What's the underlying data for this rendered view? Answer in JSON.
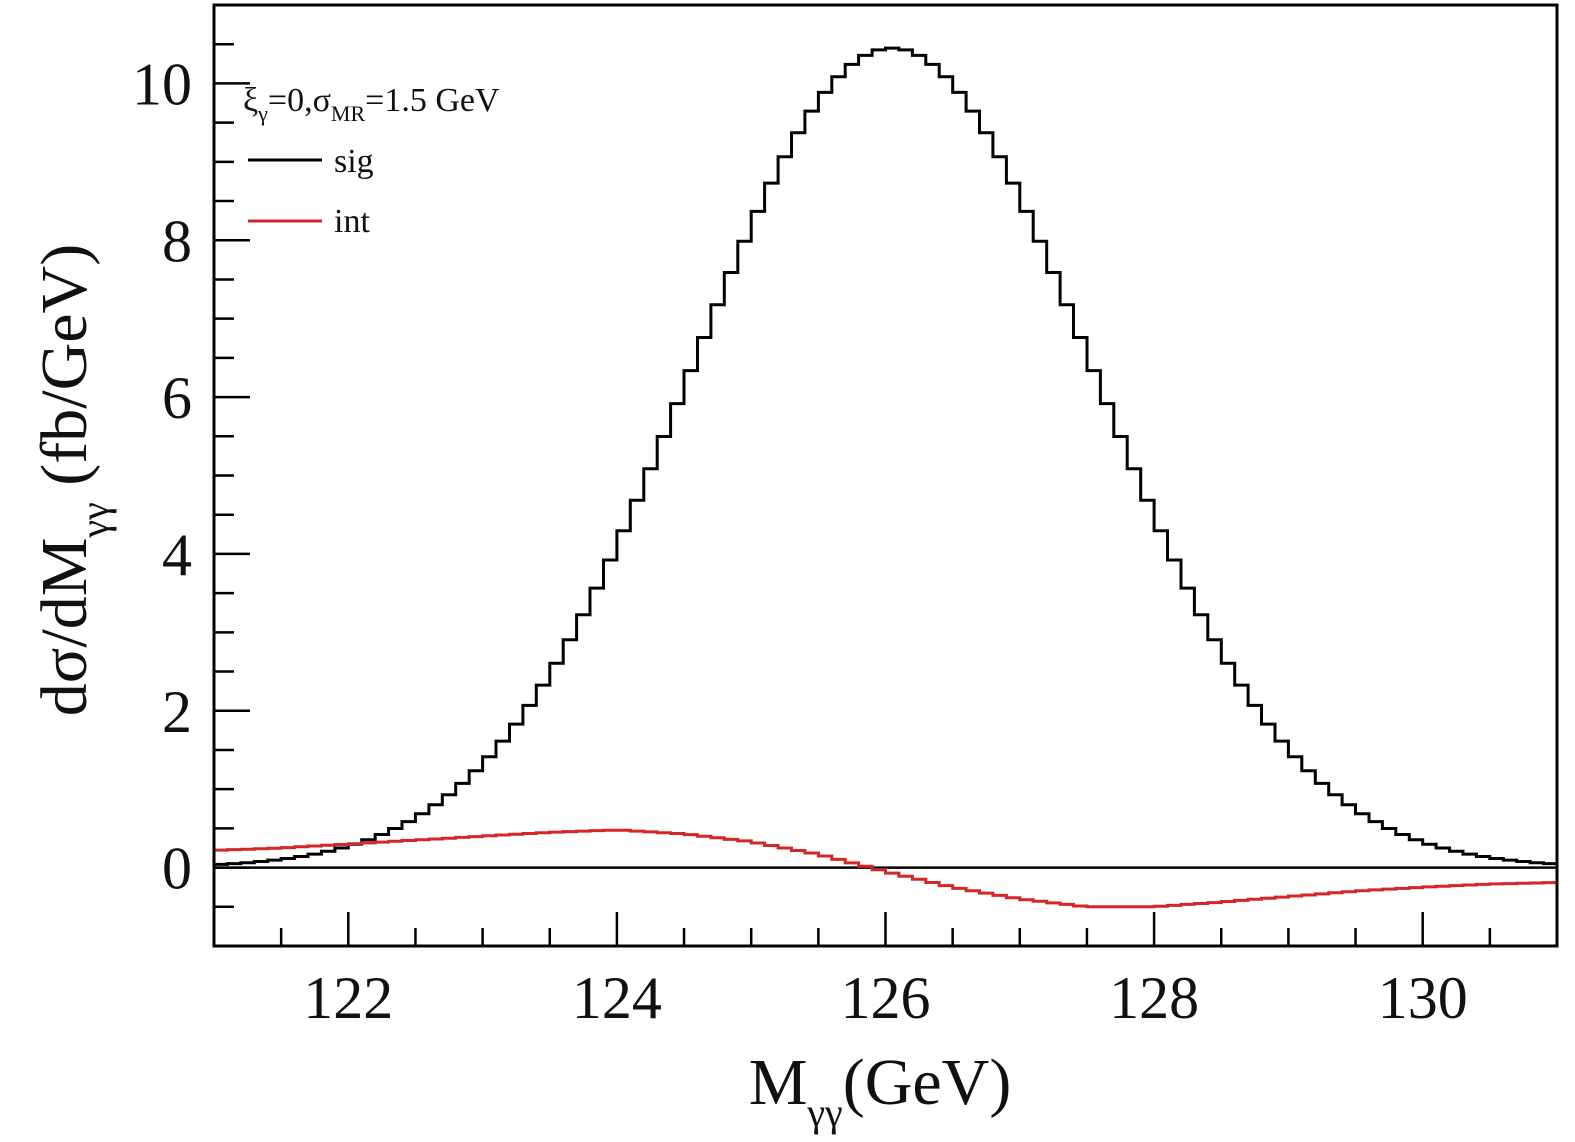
{
  "chart_data": {
    "type": "step",
    "title": "",
    "xlabel": {
      "main": "M",
      "sub": "γγ",
      "rest": "(GeV)"
    },
    "ylabel": {
      "main": "dσ/dM",
      "sub": "γγ",
      "rest": " (fb/GeV)"
    },
    "xlim": [
      121.0,
      131.0
    ],
    "ylim": [
      -1.0,
      11.0
    ],
    "x_major_ticks": [
      122,
      124,
      126,
      128,
      130
    ],
    "x_tick_labels": [
      "122",
      "124",
      "126",
      "128",
      "130"
    ],
    "x_minor_step": 0.5,
    "y_major_ticks": [
      0,
      2,
      4,
      6,
      8,
      10
    ],
    "y_tick_labels": [
      "0",
      "2",
      "4",
      "6",
      "8",
      "10"
    ],
    "y_minor_step": 0.5,
    "zero_line": true,
    "annotation": {
      "xi": "ξ",
      "xi_sub": "γ",
      "mid": "=0,",
      "sigma": "σ",
      "sigma_sub": "MR",
      "end": "=1.5 GeV"
    },
    "legend_position": "top-left",
    "series": [
      {
        "name": "sig",
        "color": "#000000",
        "style": "step",
        "gaussian": {
          "amplitude": 10.45,
          "mean": 126.05,
          "sigma": 1.5,
          "bin_width": 0.1
        }
      },
      {
        "name": "int",
        "color": "#d62728",
        "style": "step",
        "points": [
          [
            121.0,
            0.22
          ],
          [
            121.5,
            0.25
          ],
          [
            122.0,
            0.3
          ],
          [
            122.5,
            0.35
          ],
          [
            123.0,
            0.4
          ],
          [
            123.5,
            0.45
          ],
          [
            124.0,
            0.48
          ],
          [
            124.5,
            0.43
          ],
          [
            125.0,
            0.33
          ],
          [
            125.5,
            0.17
          ],
          [
            126.0,
            -0.05
          ],
          [
            126.5,
            -0.25
          ],
          [
            127.0,
            -0.4
          ],
          [
            127.5,
            -0.5
          ],
          [
            128.0,
            -0.5
          ],
          [
            128.5,
            -0.44
          ],
          [
            129.0,
            -0.37
          ],
          [
            129.5,
            -0.3
          ],
          [
            130.0,
            -0.25
          ],
          [
            130.5,
            -0.21
          ],
          [
            131.0,
            -0.19
          ]
        ]
      }
    ]
  }
}
